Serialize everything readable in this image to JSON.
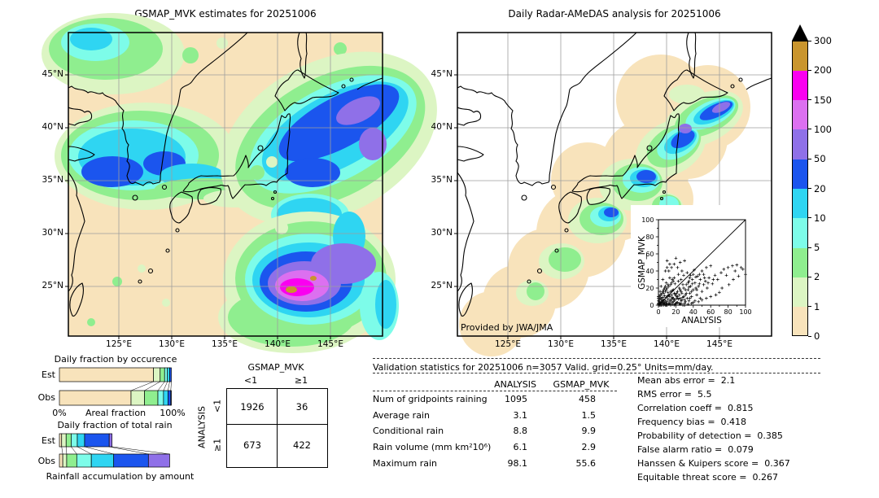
{
  "palette": {
    "peach": "#f8e3bb",
    "palegreen": "#dcf5c3",
    "green": "#8fee8f",
    "aqua": "#7dfce9",
    "cyan": "#2fd5f2",
    "blue": "#1b55ee",
    "purple": "#8f70e8",
    "orchid": "#dc70f0",
    "magenta": "#fa00f0",
    "goldenrod": "#c9952e",
    "over": "#000000",
    "grid": "#9e9e9e"
  },
  "chart_data": [
    {
      "type": "heatmap",
      "title": "GSMAP_MVK estimates for 20251006",
      "units": "mm/day",
      "x_ticks": [
        "125°E",
        "130°E",
        "135°E",
        "140°E",
        "145°E"
      ],
      "y_ticks": [
        "45°N",
        "40°N",
        "35°N",
        "30°N",
        "25°N"
      ],
      "levels": [
        0,
        1,
        2,
        5,
        10,
        20,
        50,
        100,
        150,
        200,
        300
      ],
      "level_colors": [
        "#f8e3bb",
        "#dcf5c3",
        "#8fee8f",
        "#7dfce9",
        "#2fd5f2",
        "#1b55ee",
        "#8f70e8",
        "#dc70f0",
        "#fa00f0",
        "#c9952e"
      ],
      "over_color": "#000000"
    },
    {
      "type": "heatmap",
      "title": "Daily Radar-AMeDAS analysis for 20251006",
      "units": "mm/day",
      "x_ticks": [
        "125°E",
        "130°E",
        "135°E",
        "140°E",
        "145°E"
      ],
      "y_ticks": [
        "45°N",
        "40°N",
        "35°N",
        "30°N",
        "25°N"
      ],
      "levels": [
        0,
        1,
        2,
        5,
        10,
        20,
        50,
        100,
        150,
        200,
        300
      ],
      "credit": "Provided by JWA/JMA"
    },
    {
      "type": "scatter",
      "xlabel": "ANALYSIS",
      "ylabel": "GSMAP_MVK",
      "xlim": [
        0,
        100
      ],
      "ylim": [
        0,
        100
      ],
      "ticks": [
        0,
        20,
        40,
        60,
        80,
        100
      ],
      "identity_line": true,
      "points": [
        [
          1,
          0
        ],
        [
          2,
          1
        ],
        [
          3,
          2
        ],
        [
          1,
          4
        ],
        [
          5,
          2
        ],
        [
          4,
          6
        ],
        [
          6,
          3
        ],
        [
          7,
          1
        ],
        [
          8,
          5
        ],
        [
          2,
          8
        ],
        [
          9,
          2
        ],
        [
          10,
          4
        ],
        [
          3,
          12
        ],
        [
          5,
          9
        ],
        [
          11,
          7
        ],
        [
          12,
          2
        ],
        [
          13,
          10
        ],
        [
          6,
          14
        ],
        [
          14,
          5
        ],
        [
          15,
          12
        ],
        [
          8,
          16
        ],
        [
          16,
          3
        ],
        [
          17,
          8
        ],
        [
          18,
          14
        ],
        [
          9,
          18
        ],
        [
          19,
          6
        ],
        [
          20,
          11
        ],
        [
          21,
          3
        ],
        [
          10,
          20
        ],
        [
          22,
          16
        ],
        [
          23,
          7
        ],
        [
          24,
          12
        ],
        [
          12,
          22
        ],
        [
          25,
          18
        ],
        [
          26,
          5
        ],
        [
          27,
          14
        ],
        [
          14,
          24
        ],
        [
          28,
          9
        ],
        [
          29,
          20
        ],
        [
          30,
          6
        ],
        [
          15,
          26
        ],
        [
          31,
          12
        ],
        [
          32,
          24
        ],
        [
          16,
          30
        ],
        [
          33,
          8
        ],
        [
          34,
          18
        ],
        [
          35,
          28
        ],
        [
          18,
          32
        ],
        [
          36,
          14
        ],
        [
          37,
          22
        ],
        [
          38,
          10
        ],
        [
          39,
          30
        ],
        [
          40,
          18
        ],
        [
          42,
          26
        ],
        [
          44,
          12
        ],
        [
          45,
          34
        ],
        [
          46,
          22
        ],
        [
          48,
          30
        ],
        [
          50,
          16
        ],
        [
          52,
          36
        ],
        [
          54,
          28
        ],
        [
          55,
          44
        ],
        [
          56,
          20
        ],
        [
          58,
          32
        ],
        [
          60,
          46
        ],
        [
          62,
          25
        ],
        [
          65,
          35
        ],
        [
          68,
          30
        ],
        [
          70,
          15
        ],
        [
          72,
          38
        ],
        [
          75,
          42
        ],
        [
          78,
          35
        ],
        [
          80,
          44
        ],
        [
          85,
          46
        ],
        [
          88,
          40
        ],
        [
          90,
          47
        ],
        [
          95,
          44
        ],
        [
          100,
          36
        ],
        [
          10,
          52
        ],
        [
          13,
          48
        ],
        [
          20,
          55
        ],
        [
          25,
          50
        ],
        [
          22,
          44
        ],
        [
          30,
          52
        ],
        [
          8,
          40
        ],
        [
          5,
          30
        ],
        [
          3,
          22
        ],
        [
          2,
          16
        ],
        [
          1,
          10
        ],
        [
          0,
          5
        ],
        [
          4,
          0
        ],
        [
          8,
          0
        ],
        [
          12,
          1
        ],
        [
          18,
          0
        ],
        [
          24,
          2
        ],
        [
          28,
          0
        ],
        [
          35,
          5
        ],
        [
          40,
          3
        ],
        [
          48,
          8
        ],
        [
          33,
          38
        ],
        [
          37,
          35
        ],
        [
          41,
          41
        ],
        [
          29,
          35
        ],
        [
          26,
          30
        ],
        [
          19,
          25
        ],
        [
          23,
          28
        ],
        [
          31,
          18
        ],
        [
          43,
          20
        ],
        [
          47,
          25
        ],
        [
          6,
          6
        ],
        [
          9,
          9
        ],
        [
          12,
          12
        ],
        [
          16,
          17
        ],
        [
          2,
          3
        ],
        [
          4,
          4
        ],
        [
          7,
          11
        ],
        [
          11,
          15
        ],
        [
          0,
          1
        ],
        [
          1,
          2
        ],
        [
          3,
          0
        ],
        [
          5,
          5
        ],
        [
          2,
          0
        ],
        [
          0,
          2
        ],
        [
          6,
          0
        ],
        [
          0,
          0
        ],
        [
          9,
          0
        ],
        [
          14,
          0
        ],
        [
          17,
          4
        ],
        [
          21,
          8
        ],
        [
          13,
          5
        ],
        [
          16,
          9
        ],
        [
          19,
          13
        ],
        [
          27,
          6
        ],
        [
          31,
          4
        ],
        [
          36,
          8
        ],
        [
          24,
          20
        ],
        [
          28,
          24
        ],
        [
          34,
          26
        ],
        [
          38,
          16
        ],
        [
          44,
          18
        ],
        [
          52,
          24
        ],
        [
          57,
          26
        ],
        [
          63,
          30
        ],
        [
          23,
          36
        ],
        [
          27,
          40
        ],
        [
          17,
          28
        ],
        [
          13,
          32
        ],
        [
          9,
          26
        ],
        [
          7,
          20
        ],
        [
          5,
          16
        ],
        [
          3,
          8
        ],
        [
          11,
          11
        ],
        [
          15,
          7
        ],
        [
          20,
          2
        ],
        [
          25,
          1
        ],
        [
          30,
          2
        ],
        [
          26,
          16
        ],
        [
          22,
          10
        ],
        [
          18,
          6
        ],
        [
          36,
          32
        ],
        [
          40,
          36
        ],
        [
          10,
          44
        ],
        [
          12,
          40
        ],
        [
          15,
          44
        ],
        [
          18,
          48
        ],
        [
          50,
          40
        ],
        [
          53,
          32
        ],
        [
          47,
          36
        ],
        [
          43,
          33
        ],
        [
          39,
          25
        ],
        [
          35,
          21
        ],
        [
          32,
          14
        ],
        [
          29,
          10
        ],
        [
          25,
          8
        ],
        [
          21,
          14
        ],
        [
          17,
          18
        ],
        [
          14,
          16
        ],
        [
          11,
          24
        ],
        [
          8,
          22
        ],
        [
          6,
          18
        ],
        [
          4,
          14
        ],
        [
          2,
          12
        ],
        [
          1,
          6
        ],
        [
          0,
          8
        ],
        [
          3,
          4
        ],
        [
          7,
          3
        ],
        [
          10,
          1
        ],
        [
          13,
          2
        ],
        [
          16,
          1
        ],
        [
          19,
          1
        ],
        [
          22,
          3
        ],
        [
          26,
          2
        ],
        [
          30,
          0
        ],
        [
          34,
          1
        ],
        [
          38,
          2
        ],
        [
          42,
          5
        ],
        [
          46,
          4
        ],
        [
          50,
          6
        ],
        [
          55,
          8
        ],
        [
          60,
          10
        ],
        [
          66,
          12
        ],
        [
          73,
          20
        ],
        [
          81,
          24
        ],
        [
          86,
          30
        ],
        [
          92,
          34
        ],
        [
          97,
          42
        ]
      ]
    },
    {
      "type": "bar",
      "title": "Daily fraction by occurence",
      "xlabel": "Areal fraction",
      "x_min_label": "0%",
      "x_max_label": "100%",
      "rows": [
        "Est",
        "Obs"
      ],
      "series": [
        {
          "name": "Est",
          "segments": [
            [
              "peach",
              84
            ],
            [
              "palegreen",
              6
            ],
            [
              "green",
              4
            ],
            [
              "aqua",
              2.5
            ],
            [
              "cyan",
              2
            ],
            [
              "blue",
              1.5
            ]
          ]
        },
        {
          "name": "Obs",
          "segments": [
            [
              "peach",
              64
            ],
            [
              "palegreen",
              12
            ],
            [
              "green",
              12
            ],
            [
              "aqua",
              5
            ],
            [
              "cyan",
              4
            ],
            [
              "blue",
              2.5
            ],
            [
              "purple",
              0.5
            ]
          ]
        }
      ]
    },
    {
      "type": "bar",
      "title": "Daily fraction of total rain",
      "caption": "Rainfall accumulation by amount",
      "rows": [
        "Est",
        "Obs"
      ],
      "series": [
        {
          "name": "Est",
          "segments": [
            [
              "peach",
              2
            ],
            [
              "palegreen",
              4
            ],
            [
              "green",
              4.5
            ],
            [
              "aqua",
              5.5
            ],
            [
              "cyan",
              6.5
            ],
            [
              "blue",
              22
            ],
            [
              "purple",
              2.5
            ]
          ]
        },
        {
          "name": "Obs",
          "segments": [
            [
              "peach",
              3
            ],
            [
              "palegreen",
              3.5
            ],
            [
              "green",
              9
            ],
            [
              "aqua",
              13
            ],
            [
              "cyan",
              20
            ],
            [
              "blue",
              31
            ],
            [
              "purple",
              19
            ]
          ]
        }
      ]
    },
    {
      "type": "table",
      "name": "contingency",
      "col_group": "GSMAP_MVK",
      "row_group": "ANALYSIS",
      "cols": [
        "<1",
        "≥1"
      ],
      "rows": [
        "<1",
        "≥1"
      ],
      "values": [
        [
          1926,
          36
        ],
        [
          673,
          422
        ]
      ]
    },
    {
      "type": "table",
      "name": "validation_statistics",
      "title": "Validation statistics for 20251006  n=3057 Valid. grid=0.25° Units=mm/day.",
      "columns": [
        "ANALYSIS",
        "GSMAP_MVK"
      ],
      "rows": [
        [
          "Num of gridpoints raining",
          "1095",
          "458"
        ],
        [
          "Average rain",
          "3.1",
          "1.5"
        ],
        [
          "Conditional rain",
          "8.8",
          "9.9"
        ],
        [
          "Rain volume (mm km²10⁶)",
          "6.1",
          "2.9"
        ],
        [
          "Maximum rain",
          "98.1",
          "55.6"
        ]
      ],
      "extra": [
        [
          "Mean abs error",
          "2.1"
        ],
        [
          "RMS error",
          "5.5"
        ],
        [
          "Correlation coeff",
          "0.815"
        ],
        [
          "Frequency bias",
          "0.418"
        ],
        [
          "Probability of detection",
          "0.385"
        ],
        [
          "False alarm ratio",
          "0.079"
        ],
        [
          "Hanssen & Kuipers score",
          "0.367"
        ],
        [
          "Equitable threat score",
          "0.267"
        ]
      ]
    }
  ]
}
